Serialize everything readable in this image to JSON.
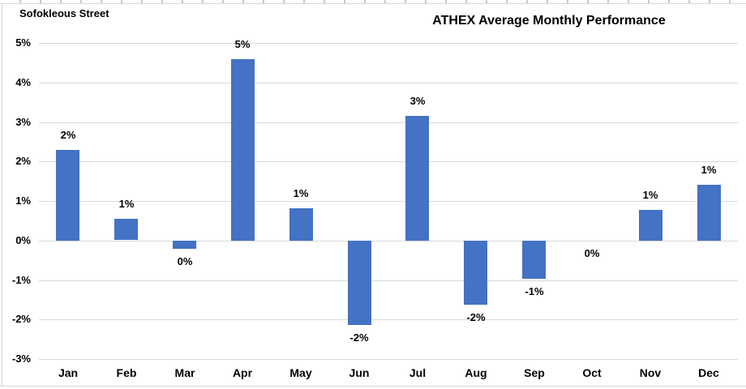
{
  "chart_data": {
    "type": "bar",
    "title": "ATHEX Average Monthly Performance",
    "corner_label": "Sofokleous Street",
    "categories": [
      "Jan",
      "Feb",
      "Mar",
      "Apr",
      "May",
      "Jun",
      "Jul",
      "Aug",
      "Sep",
      "Oct",
      "Nov",
      "Dec"
    ],
    "values": [
      2.3,
      0.54,
      -0.21,
      4.59,
      0.82,
      -2.14,
      3.16,
      -1.63,
      -0.97,
      0,
      0.78,
      1.42
    ],
    "bar_labels": [
      "2%",
      "1%",
      "0%",
      "5%",
      "1%",
      "-2%",
      "3%",
      "-2%",
      "-1%",
      "0%",
      "1%",
      "1%"
    ],
    "xlabel": "",
    "ylabel": "",
    "ylim": [
      -3,
      5
    ],
    "ytick_step": 1,
    "ytick_labels": [
      "5%",
      "4%",
      "3%",
      "2%",
      "1%",
      "0%",
      "-1%",
      "-2%",
      "-3%"
    ],
    "grid": true,
    "legend_position": "none",
    "colors": {
      "bar": "#4472C4",
      "gridline": "#D9D9D9",
      "border": "#D6D6D6",
      "text": "#000000"
    }
  }
}
